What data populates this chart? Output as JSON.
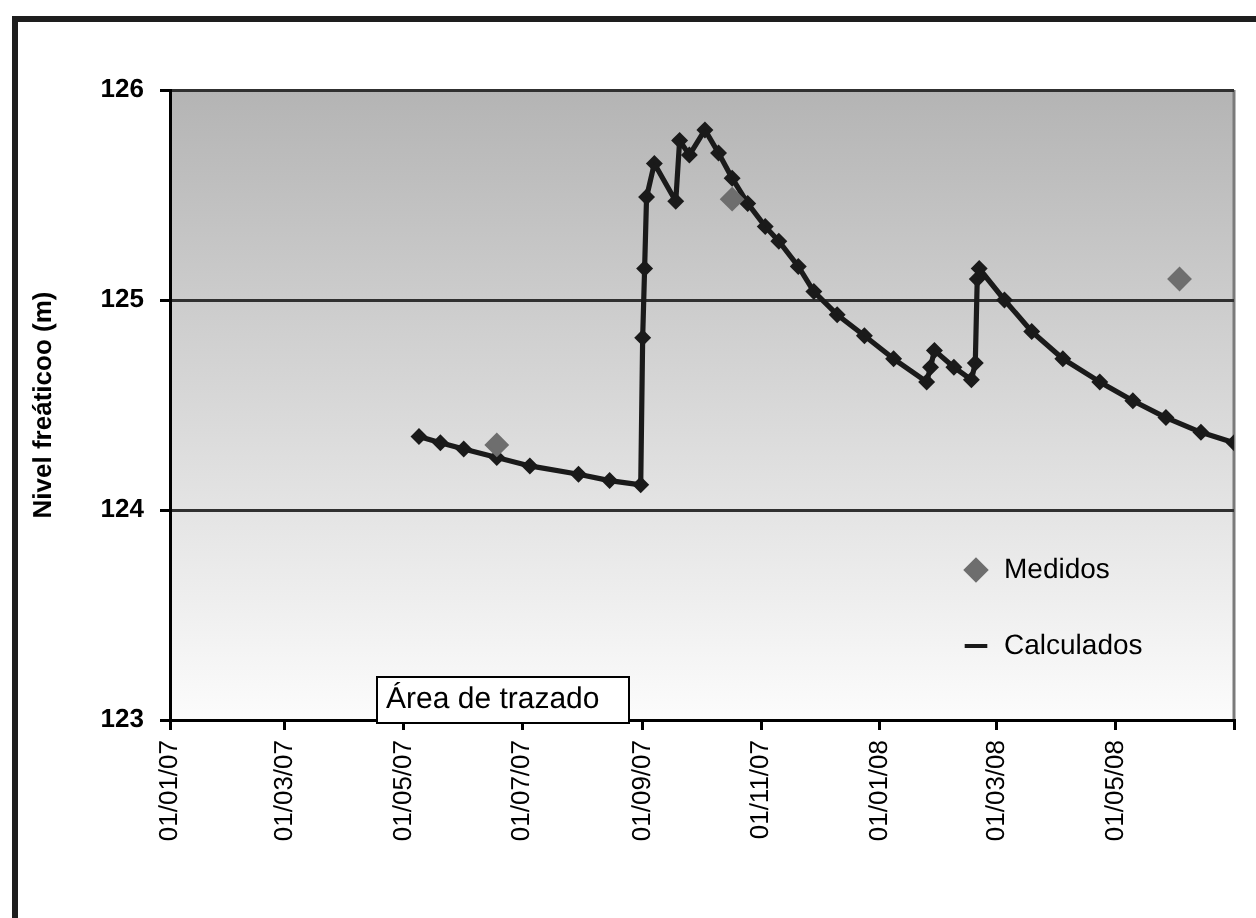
{
  "chart_data": {
    "type": "line",
    "ylabel": "Nivel freáticoo (m)",
    "xlim": [
      "2007-01-01",
      "2008-07-01"
    ],
    "xticks": [
      {
        "value": "2007-01-01",
        "label": "01/01/07"
      },
      {
        "value": "2007-03-01",
        "label": "01/03/07"
      },
      {
        "value": "2007-05-01",
        "label": "01/05/07"
      },
      {
        "value": "2007-07-01",
        "label": "01/07/07"
      },
      {
        "value": "2007-09-01",
        "label": "01/09/07"
      },
      {
        "value": "2007-11-01",
        "label": "01/11/07"
      },
      {
        "value": "2008-01-01",
        "label": "01/01/08"
      },
      {
        "value": "2008-03-01",
        "label": "01/03/08"
      },
      {
        "value": "2008-05-01",
        "label": "01/05/08"
      },
      {
        "value": "2008-07-01",
        "label": null
      }
    ],
    "ylim": [
      123,
      126
    ],
    "yticks": [
      123,
      124,
      125,
      126
    ],
    "grid": "y",
    "legend": "bottom right",
    "marker": "diamond",
    "line_style": "solid",
    "annotations": [
      "Área de trazado"
    ],
    "series": [
      {
        "name": "Medidos",
        "type": "scatter",
        "color": "#6e6e6e",
        "x": [
          "2007-06-18",
          "2007-10-17",
          "2008-06-03"
        ],
        "values": [
          124.31,
          125.48,
          125.1
        ]
      },
      {
        "name": "Calculados",
        "type": "line",
        "color": "#1a1a1a",
        "x": [
          "2007-05-09",
          "2007-05-20",
          "2007-06-01",
          "2007-06-18",
          "2007-07-05",
          "2007-07-30",
          "2007-08-15",
          "2007-08-31",
          "2007-09-01",
          "2007-09-02",
          "2007-09-03",
          "2007-09-07",
          "2007-09-18",
          "2007-09-20",
          "2007-09-25",
          "2007-10-03",
          "2007-10-10",
          "2007-10-17",
          "2007-10-25",
          "2007-11-03",
          "2007-11-10",
          "2007-11-20",
          "2007-11-28",
          "2007-12-10",
          "2007-12-24",
          "2008-01-08",
          "2008-01-25",
          "2008-01-27",
          "2008-01-29",
          "2008-02-08",
          "2008-02-17",
          "2008-02-19",
          "2008-02-20",
          "2008-02-21",
          "2008-03-05",
          "2008-03-19",
          "2008-04-04",
          "2008-04-23",
          "2008-05-10",
          "2008-05-27",
          "2008-06-14",
          "2008-07-01"
        ],
        "values": [
          124.35,
          124.32,
          124.29,
          124.25,
          124.21,
          124.17,
          124.14,
          124.12,
          124.82,
          125.15,
          125.49,
          125.65,
          125.47,
          125.76,
          125.69,
          125.81,
          125.7,
          125.58,
          125.46,
          125.35,
          125.28,
          125.16,
          125.04,
          124.93,
          124.83,
          124.72,
          124.61,
          124.68,
          124.76,
          124.68,
          124.62,
          124.7,
          125.1,
          125.15,
          125.0,
          124.85,
          124.72,
          124.61,
          124.52,
          124.44,
          124.37,
          124.32
        ]
      }
    ]
  }
}
